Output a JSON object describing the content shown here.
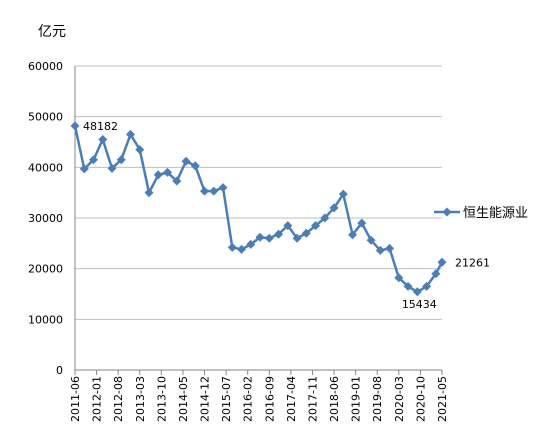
{
  "chart_data": {
    "type": "line",
    "y_label": "亿元",
    "x": [
      "2011-06",
      "2011-09",
      "2011-12",
      "2012-03",
      "2012-06",
      "2012-09",
      "2012-12",
      "2013-03",
      "2013-06",
      "2013-09",
      "2013-12",
      "2014-03",
      "2014-06",
      "2014-09",
      "2014-12",
      "2015-03",
      "2015-06",
      "2015-09",
      "2015-12",
      "2016-03",
      "2016-06",
      "2016-09",
      "2016-12",
      "2017-03",
      "2017-06",
      "2017-09",
      "2017-12",
      "2018-03",
      "2018-06",
      "2018-09",
      "2018-12",
      "2019-03",
      "2019-06",
      "2019-09",
      "2019-12",
      "2020-03",
      "2020-06",
      "2020-09",
      "2020-12",
      "2021-03",
      "2021-05"
    ],
    "series": [
      {
        "name": "恒生能源业",
        "color": "#4a7ebb",
        "values": [
          48182,
          39700,
          41500,
          45500,
          39800,
          41500,
          46500,
          43500,
          35000,
          38500,
          39000,
          37300,
          41200,
          40300,
          35300,
          35300,
          36000,
          24200,
          23800,
          24800,
          26200,
          26000,
          26800,
          28500,
          26000,
          27000,
          28500,
          30000,
          32000,
          34700,
          26700,
          29000,
          25600,
          23600,
          24000,
          18200,
          16500,
          15434,
          16500,
          19000,
          21261
        ],
        "value_labels": [
          "48182",
          null,
          null,
          null,
          null,
          null,
          null,
          null,
          null,
          null,
          null,
          null,
          null,
          null,
          null,
          null,
          null,
          null,
          null,
          null,
          null,
          null,
          null,
          null,
          null,
          null,
          null,
          null,
          null,
          null,
          null,
          null,
          null,
          null,
          null,
          null,
          null,
          "15434",
          null,
          null,
          "21261"
        ]
      }
    ],
    "xlim": [
      "2011-06",
      "2021-05"
    ],
    "xticks": [
      "2011-06",
      "2012-01",
      "2012-08",
      "2013-03",
      "2013-10",
      "2014-05",
      "2014-12",
      "2015-07",
      "2016-02",
      "2016-09",
      "2017-04",
      "2017-11",
      "2018-06",
      "2019-01",
      "2019-08",
      "2020-03",
      "2020-10",
      "2021-05"
    ],
    "ylim": [
      0,
      60000
    ],
    "yticks": [
      0,
      10000,
      20000,
      30000,
      40000,
      50000,
      60000
    ],
    "grid": true,
    "legend": "right"
  }
}
